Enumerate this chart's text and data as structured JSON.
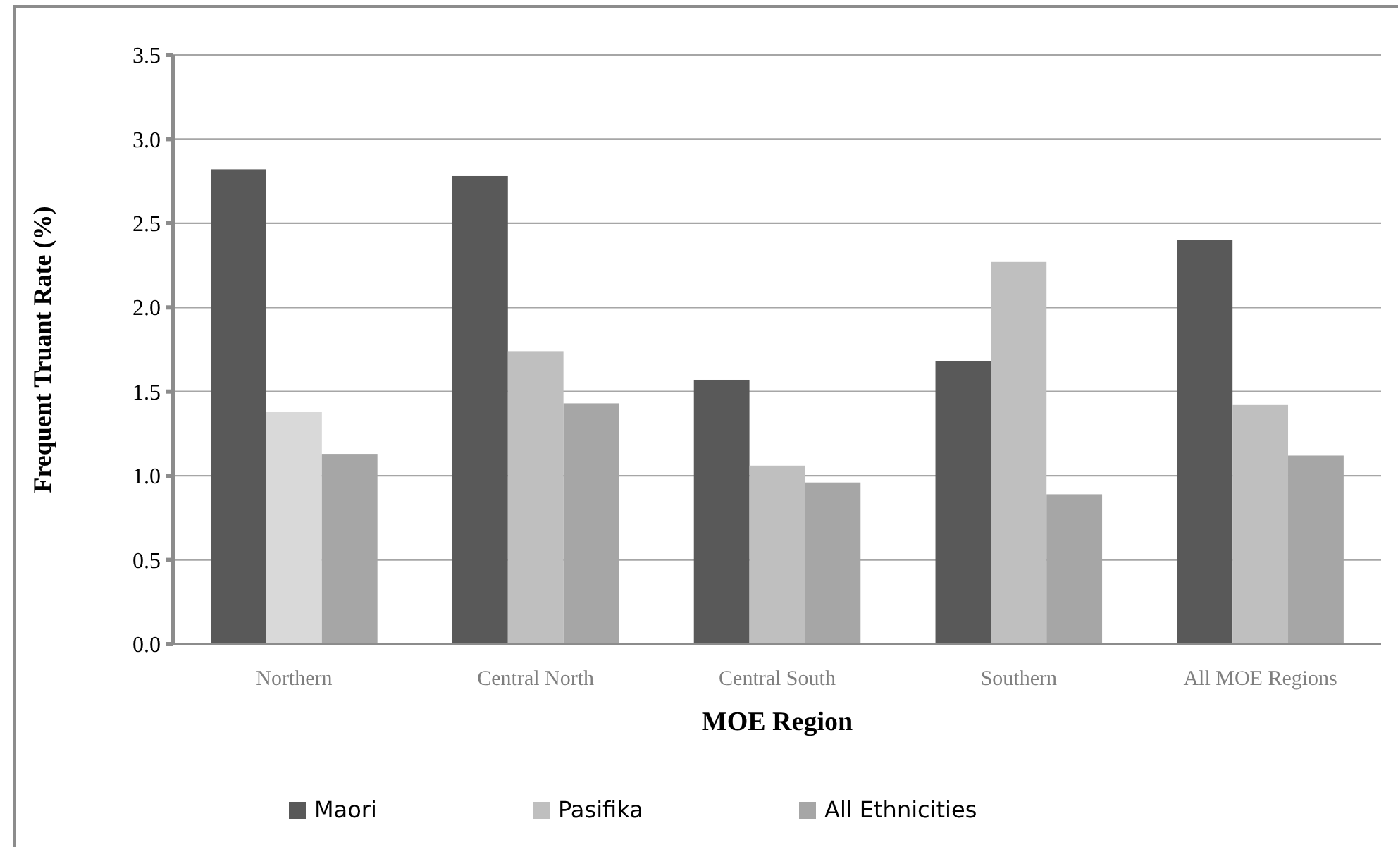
{
  "chart_data": {
    "type": "bar",
    "xlabel": "MOE Region",
    "ylabel": "Frequent Truant Rate (%)",
    "categories": [
      "Northern",
      "Central North",
      "Central South",
      "Southern",
      "All MOE Regions"
    ],
    "series": [
      {
        "name": "Maori",
        "color": "#595959",
        "values": [
          2.82,
          2.78,
          1.57,
          1.68,
          2.4
        ]
      },
      {
        "name": "Pasifika",
        "color": "#bfbfbf",
        "colors": [
          "#d9d9d9",
          "#bfbfbf",
          "#bfbfbf",
          "#bfbfbf",
          "#bfbfbf"
        ],
        "values": [
          1.38,
          1.74,
          1.06,
          2.27,
          1.42
        ]
      },
      {
        "name": "All Ethnicities",
        "color": "#a6a6a6",
        "values": [
          1.13,
          1.43,
          0.96,
          0.89,
          1.12
        ]
      }
    ],
    "ylim": [
      0,
      3.5
    ],
    "yticks": [
      {
        "value": 0,
        "label": "0.0"
      },
      {
        "value": 0.5,
        "label": "0.5"
      },
      {
        "value": 1,
        "label": "1.0"
      },
      {
        "value": 1.5,
        "label": "1.5"
      },
      {
        "value": 2,
        "label": "2.0"
      },
      {
        "value": 2.5,
        "label": "2.5"
      },
      {
        "value": 3,
        "label": "3.0"
      },
      {
        "value": 3.5,
        "label": "3.5"
      }
    ],
    "grid": "y",
    "legend": "bottom"
  }
}
